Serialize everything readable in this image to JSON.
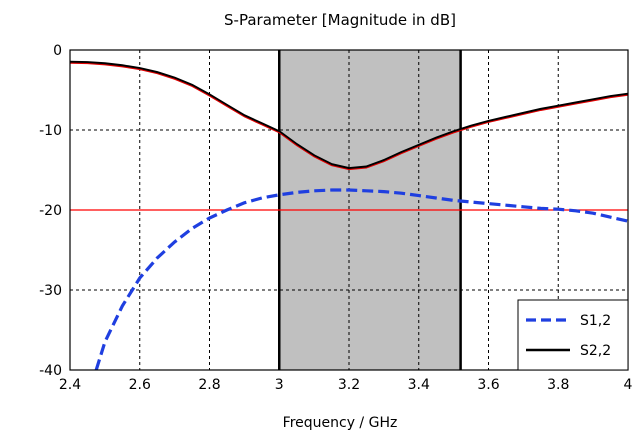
{
  "chart_data": {
    "type": "line",
    "title": "S-Parameter [Magnitude in dB]",
    "xlabel": "Frequency / GHz",
    "ylabel": "",
    "xlim": [
      2.4,
      4.0
    ],
    "ylim": [
      -40,
      0
    ],
    "x_ticks": [
      "2.4",
      "2.6",
      "2.8",
      "3",
      "3.2",
      "3.4",
      "3.6",
      "3.8",
      "4"
    ],
    "y_ticks": [
      "0",
      "-10",
      "-20",
      "-30",
      "-40"
    ],
    "grid": true,
    "legend_position": "bottom-right",
    "shaded_band": {
      "x": [
        3.0,
        3.52
      ],
      "color": "#c0c0c0"
    },
    "reference_line": {
      "y": -20,
      "color": "#ff0000"
    },
    "series": [
      {
        "name": "S1,2",
        "style": "dashed",
        "color": "#1f3fe0",
        "x": [
          2.475,
          2.5,
          2.55,
          2.6,
          2.65,
          2.7,
          2.75,
          2.8,
          2.85,
          2.9,
          2.95,
          3.0,
          3.05,
          3.1,
          3.15,
          3.2,
          3.25,
          3.3,
          3.35,
          3.4,
          3.45,
          3.5,
          3.55,
          3.6,
          3.65,
          3.7,
          3.75,
          3.8,
          3.85,
          3.9,
          3.95,
          4.0
        ],
        "values": [
          -40.0,
          -36.5,
          -32.0,
          -28.5,
          -26.0,
          -24.0,
          -22.3,
          -21.0,
          -20.0,
          -19.1,
          -18.5,
          -18.1,
          -17.8,
          -17.6,
          -17.5,
          -17.5,
          -17.6,
          -17.7,
          -17.9,
          -18.2,
          -18.5,
          -18.8,
          -19.0,
          -19.2,
          -19.4,
          -19.6,
          -19.8,
          -19.9,
          -20.1,
          -20.4,
          -20.9,
          -21.4
        ]
      },
      {
        "name": "S2,2",
        "style": "solid",
        "color": "#000000",
        "highlight_color": "#e00000",
        "x": [
          2.4,
          2.45,
          2.5,
          2.55,
          2.6,
          2.65,
          2.7,
          2.75,
          2.8,
          2.85,
          2.9,
          2.95,
          3.0,
          3.05,
          3.1,
          3.15,
          3.2,
          3.25,
          3.3,
          3.35,
          3.4,
          3.45,
          3.5,
          3.55,
          3.6,
          3.65,
          3.7,
          3.75,
          3.8,
          3.85,
          3.9,
          3.95,
          4.0
        ],
        "values": [
          -1.5,
          -1.55,
          -1.7,
          -1.95,
          -2.3,
          -2.8,
          -3.5,
          -4.4,
          -5.6,
          -6.9,
          -8.2,
          -9.2,
          -10.2,
          -11.8,
          -13.2,
          -14.3,
          -14.8,
          -14.6,
          -13.8,
          -12.8,
          -11.9,
          -11.0,
          -10.2,
          -9.5,
          -8.9,
          -8.4,
          -7.9,
          -7.4,
          -7.0,
          -6.6,
          -6.2,
          -5.8,
          -5.5
        ]
      }
    ]
  }
}
